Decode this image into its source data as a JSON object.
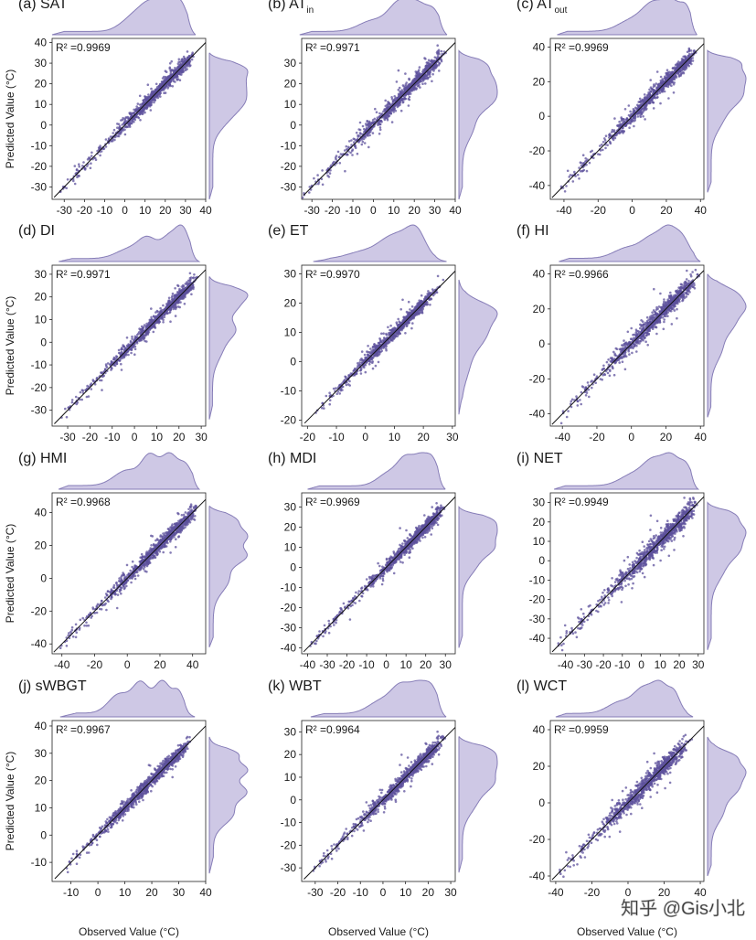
{
  "figure": {
    "axis_label_y": "Predicted Value (°C)",
    "axis_label_x": "Observed Value (°C)",
    "watermark": "知乎 @Gis小北"
  },
  "colors": {
    "marginal_fill": "#c9c3e3",
    "marginal_line": "#7a6fb0",
    "scatter": "#5e519c",
    "line": "#111111"
  },
  "chart_data": [
    {
      "type": "scatter",
      "title": "(a) SAT",
      "title_main": "(a) SAT",
      "title_sub": "",
      "r2_text": "R² =0.9969",
      "xlim": [
        -36,
        40
      ],
      "ylim": [
        -36,
        42
      ],
      "xticks": [
        -30,
        -20,
        -10,
        0,
        10,
        20,
        30,
        40
      ],
      "yticks": [
        -30,
        -20,
        -10,
        0,
        10,
        20,
        30,
        40
      ],
      "xlabel": "",
      "ylabel": "Predicted Value (°C)",
      "data_range": [
        -36,
        35
      ],
      "spread": 1.6,
      "peaks": [
        [
          4,
          0.5,
          6
        ],
        [
          12,
          0.7,
          5
        ],
        [
          22,
          1.0,
          6
        ],
        [
          28,
          0.5,
          3
        ]
      ]
    },
    {
      "type": "scatter",
      "title": "(b) ATin",
      "title_main": "(b) AT",
      "title_sub": "in",
      "r2_text": "R² =0.9971",
      "xlim": [
        -35,
        40
      ],
      "ylim": [
        -36,
        42
      ],
      "xticks": [
        -30,
        -20,
        -10,
        0,
        10,
        20,
        30,
        40
      ],
      "yticks": [
        -30,
        -20,
        -10,
        0,
        10,
        20,
        30
      ],
      "xlabel": "",
      "ylabel": "",
      "data_range": [
        -36,
        36
      ],
      "spread": 1.7,
      "peaks": [
        [
          0,
          0.4,
          7
        ],
        [
          12,
          0.8,
          5
        ],
        [
          22,
          1.0,
          6
        ],
        [
          30,
          0.4,
          3
        ]
      ]
    },
    {
      "type": "scatter",
      "title": "(c) ATout",
      "title_main": "(c) AT",
      "title_sub": "out",
      "r2_text": "R² =0.9969",
      "xlim": [
        -48,
        42
      ],
      "ylim": [
        -48,
        45
      ],
      "xticks": [
        -40,
        -20,
        0,
        20,
        40
      ],
      "yticks": [
        -40,
        -20,
        0,
        20,
        40
      ],
      "xlabel": "",
      "ylabel": "",
      "data_range": [
        -44,
        38
      ],
      "spread": 2.0,
      "peaks": [
        [
          0,
          0.4,
          8
        ],
        [
          12,
          0.8,
          6
        ],
        [
          24,
          1.0,
          6
        ],
        [
          32,
          0.5,
          3
        ]
      ]
    },
    {
      "type": "scatter",
      "title": "(d) DI",
      "title_main": "(d) DI",
      "title_sub": "",
      "r2_text": "R² =0.9971",
      "xlim": [
        -37,
        32
      ],
      "ylim": [
        -37,
        34
      ],
      "xticks": [
        -30,
        -20,
        -10,
        0,
        10,
        20,
        30
      ],
      "yticks": [
        -30,
        -20,
        -10,
        0,
        10,
        20,
        30
      ],
      "xlabel": "",
      "ylabel": "Predicted Value (°C)",
      "data_range": [
        -34,
        29
      ],
      "spread": 1.3,
      "peaks": [
        [
          -2,
          0.4,
          6
        ],
        [
          6,
          0.7,
          4
        ],
        [
          16,
          0.9,
          4
        ],
        [
          22,
          1.0,
          3
        ]
      ]
    },
    {
      "type": "scatter",
      "title": "(e) ET",
      "title_main": "(e) ET",
      "title_sub": "",
      "r2_text": "R² =0.9970",
      "xlim": [
        -22,
        31
      ],
      "ylim": [
        -22,
        33
      ],
      "xticks": [
        -20,
        -10,
        0,
        10,
        20,
        30
      ],
      "yticks": [
        -20,
        -10,
        0,
        10,
        20,
        30
      ],
      "xlabel": "",
      "ylabel": "",
      "data_range": [
        -18,
        28
      ],
      "spread": 1.0,
      "peaks": [
        [
          0,
          0.4,
          6
        ],
        [
          8,
          0.7,
          4
        ],
        [
          14,
          0.9,
          4
        ],
        [
          18,
          1.0,
          3
        ]
      ]
    },
    {
      "type": "scatter",
      "title": "(f) HI",
      "title_main": "(f) HI",
      "title_sub": "",
      "r2_text": "R² =0.9966",
      "xlim": [
        -47,
        42
      ],
      "ylim": [
        -47,
        45
      ],
      "xticks": [
        -40,
        -20,
        0,
        20,
        40
      ],
      "yticks": [
        -40,
        -20,
        0,
        20,
        40
      ],
      "xlabel": "",
      "ylabel": "",
      "data_range": [
        -42,
        40
      ],
      "spread": 2.2,
      "peaks": [
        [
          -2,
          0.4,
          8
        ],
        [
          12,
          0.7,
          6
        ],
        [
          22,
          1.0,
          5
        ],
        [
          30,
          0.6,
          4
        ]
      ]
    },
    {
      "type": "scatter",
      "title": "(g) HMI",
      "title_main": "(g) HMI",
      "title_sub": "",
      "r2_text": "R² =0.9968",
      "xlim": [
        -46,
        48
      ],
      "ylim": [
        -46,
        52
      ],
      "xticks": [
        -40,
        -20,
        0,
        20,
        40
      ],
      "yticks": [
        -40,
        -20,
        0,
        20,
        40
      ],
      "xlabel": "",
      "ylabel": "Predicted Value (°C)",
      "data_range": [
        -42,
        44
      ],
      "spread": 2.0,
      "peaks": [
        [
          0,
          0.5,
          8
        ],
        [
          14,
          0.9,
          5
        ],
        [
          26,
          1.0,
          5
        ],
        [
          36,
          0.6,
          4
        ]
      ]
    },
    {
      "type": "scatter",
      "title": "(h) MDI",
      "title_main": "(h) MDI",
      "title_sub": "",
      "r2_text": "R² =0.9969",
      "xlim": [
        -43,
        35
      ],
      "ylim": [
        -43,
        37
      ],
      "xticks": [
        -40,
        -30,
        -20,
        -10,
        0,
        10,
        20,
        30
      ],
      "yticks": [
        -40,
        -30,
        -20,
        -10,
        0,
        10,
        20,
        30
      ],
      "xlabel": "",
      "ylabel": "",
      "data_range": [
        -40,
        30
      ],
      "spread": 1.5,
      "peaks": [
        [
          2,
          0.5,
          6
        ],
        [
          10,
          0.8,
          4
        ],
        [
          18,
          1.0,
          4
        ],
        [
          24,
          0.7,
          3
        ]
      ]
    },
    {
      "type": "scatter",
      "title": "(i) NET",
      "title_main": "(i) NET",
      "title_sub": "",
      "r2_text": "R² =0.9949",
      "xlim": [
        -48,
        33
      ],
      "ylim": [
        -48,
        35
      ],
      "xticks": [
        -40,
        -30,
        -20,
        -10,
        0,
        10,
        20,
        30
      ],
      "yticks": [
        -40,
        -30,
        -20,
        -10,
        0,
        10,
        20,
        30
      ],
      "xlabel": "",
      "ylabel": "",
      "data_range": [
        -46,
        30
      ],
      "spread": 2.2,
      "peaks": [
        [
          -4,
          0.4,
          7
        ],
        [
          6,
          0.7,
          5
        ],
        [
          16,
          1.0,
          5
        ],
        [
          24,
          0.5,
          3
        ]
      ]
    },
    {
      "type": "scatter",
      "title": "(j) sWBGT",
      "title_main": "(j) sWBGT",
      "title_sub": "",
      "r2_text": "R² =0.9967",
      "xlim": [
        -17,
        40
      ],
      "ylim": [
        -17,
        42
      ],
      "xticks": [
        -10,
        0,
        10,
        20,
        30,
        40
      ],
      "yticks": [
        -10,
        0,
        10,
        20,
        30,
        40
      ],
      "xlabel": "Observed Value (°C)",
      "ylabel": "Predicted Value (°C)",
      "data_range": [
        -14,
        36
      ],
      "spread": 1.2,
      "peaks": [
        [
          8,
          0.6,
          4
        ],
        [
          16,
          0.9,
          3
        ],
        [
          24,
          1.0,
          3
        ],
        [
          30,
          0.6,
          2
        ]
      ]
    },
    {
      "type": "scatter",
      "title": "(k) WBT",
      "title_main": "(k) WBT",
      "title_sub": "",
      "r2_text": "R² =0.9964",
      "xlim": [
        -36,
        32
      ],
      "ylim": [
        -36,
        35
      ],
      "xticks": [
        -30,
        -20,
        -10,
        0,
        10,
        20,
        30
      ],
      "yticks": [
        -30,
        -20,
        -10,
        0,
        10,
        20,
        30
      ],
      "xlabel": "Observed Value (°C)",
      "ylabel": "",
      "data_range": [
        -32,
        28
      ],
      "spread": 1.4,
      "peaks": [
        [
          0,
          0.5,
          6
        ],
        [
          8,
          0.8,
          4
        ],
        [
          16,
          1.0,
          4
        ],
        [
          22,
          0.7,
          3
        ]
      ]
    },
    {
      "type": "scatter",
      "title": "(l) WCT",
      "title_main": "(l) WCT",
      "title_sub": "",
      "r2_text": "R² =0.9959",
      "xlim": [
        -43,
        42
      ],
      "ylim": [
        -43,
        45
      ],
      "xticks": [
        -40,
        -20,
        0,
        20,
        40
      ],
      "yticks": [
        -40,
        -20,
        0,
        20,
        40
      ],
      "xlabel": "Observed Value (°C)",
      "ylabel": "",
      "data_range": [
        -40,
        36
      ],
      "spread": 2.3,
      "peaks": [
        [
          -4,
          0.4,
          7
        ],
        [
          8,
          0.7,
          5
        ],
        [
          18,
          1.0,
          5
        ],
        [
          26,
          0.5,
          3
        ]
      ]
    }
  ]
}
